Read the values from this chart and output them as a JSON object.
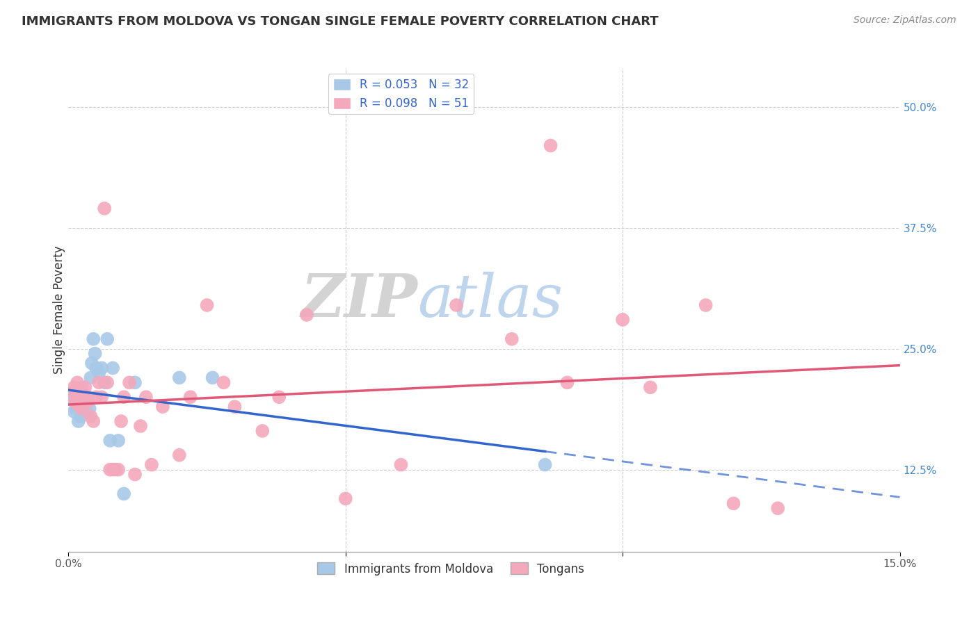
{
  "title": "IMMIGRANTS FROM MOLDOVA VS TONGAN SINGLE FEMALE POVERTY CORRELATION CHART",
  "source": "Source: ZipAtlas.com",
  "ylabel": "Single Female Poverty",
  "x_min": 0.0,
  "x_max": 0.15,
  "y_min": 0.04,
  "y_max": 0.54,
  "y_ticks": [
    0.125,
    0.25,
    0.375,
    0.5
  ],
  "y_tick_labels": [
    "12.5%",
    "25.0%",
    "37.5%",
    "50.0%"
  ],
  "series1_color": "#a8c8e8",
  "series2_color": "#f4a8bc",
  "line1_color": "#3366cc",
  "line2_color": "#e05878",
  "background_color": "#ffffff",
  "grid_color": "#cccccc",
  "moldova_x": [
    0.0008,
    0.001,
    0.0012,
    0.0014,
    0.0016,
    0.0018,
    0.002,
    0.0022,
    0.0024,
    0.0026,
    0.0028,
    0.003,
    0.0032,
    0.0035,
    0.0038,
    0.004,
    0.0042,
    0.0045,
    0.0048,
    0.005,
    0.0055,
    0.006,
    0.0065,
    0.007,
    0.0075,
    0.008,
    0.009,
    0.01,
    0.012,
    0.02,
    0.026,
    0.086
  ],
  "moldova_y": [
    0.198,
    0.185,
    0.205,
    0.188,
    0.2,
    0.175,
    0.195,
    0.18,
    0.21,
    0.192,
    0.2,
    0.195,
    0.185,
    0.2,
    0.188,
    0.22,
    0.235,
    0.26,
    0.245,
    0.23,
    0.225,
    0.23,
    0.215,
    0.26,
    0.155,
    0.23,
    0.155,
    0.1,
    0.215,
    0.22,
    0.22,
    0.13
  ],
  "tongan_x": [
    0.0008,
    0.001,
    0.0012,
    0.0014,
    0.0016,
    0.0018,
    0.002,
    0.0022,
    0.0024,
    0.0026,
    0.0028,
    0.003,
    0.0035,
    0.004,
    0.0045,
    0.005,
    0.0055,
    0.006,
    0.0065,
    0.007,
    0.0075,
    0.008,
    0.0085,
    0.009,
    0.0095,
    0.01,
    0.011,
    0.012,
    0.013,
    0.014,
    0.015,
    0.017,
    0.02,
    0.022,
    0.025,
    0.028,
    0.03,
    0.035,
    0.038,
    0.043,
    0.05,
    0.06,
    0.07,
    0.08,
    0.087,
    0.09,
    0.1,
    0.105,
    0.115,
    0.12,
    0.128
  ],
  "tongan_y": [
    0.205,
    0.21,
    0.195,
    0.2,
    0.215,
    0.192,
    0.2,
    0.205,
    0.188,
    0.195,
    0.2,
    0.21,
    0.195,
    0.18,
    0.175,
    0.2,
    0.215,
    0.2,
    0.395,
    0.215,
    0.125,
    0.125,
    0.125,
    0.125,
    0.175,
    0.2,
    0.215,
    0.12,
    0.17,
    0.2,
    0.13,
    0.19,
    0.14,
    0.2,
    0.295,
    0.215,
    0.19,
    0.165,
    0.2,
    0.285,
    0.095,
    0.13,
    0.295,
    0.26,
    0.46,
    0.215,
    0.28,
    0.21,
    0.295,
    0.09,
    0.085
  ]
}
